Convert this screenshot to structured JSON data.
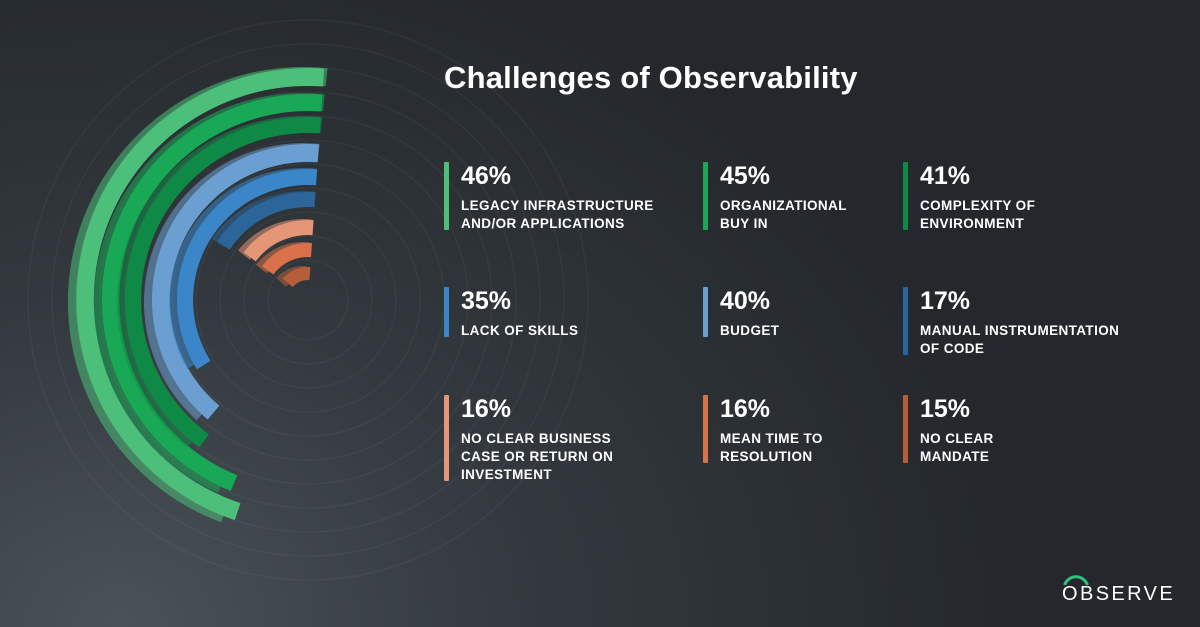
{
  "title": "Challenges of Observability",
  "logo_text": "OBSERVE",
  "colors": {
    "background": "#2b3034",
    "logo_arc": "#2ec27e"
  },
  "chart_data": {
    "type": "radial-bar",
    "title": "Challenges of Observability",
    "series": [
      {
        "value": 46,
        "pct": "46%",
        "label": "LEGACY INFRASTRUCTURE\nAND/OR APPLICATIONS",
        "color": "#4cbf7a"
      },
      {
        "value": 45,
        "pct": "45%",
        "label": "ORGANIZATIONAL\nBUY IN",
        "color": "#19a856"
      },
      {
        "value": 41,
        "pct": "41%",
        "label": "COMPLEXITY OF\nENVIRONMENT",
        "color": "#0f8a46"
      },
      {
        "value": 35,
        "pct": "35%",
        "label": "LACK OF SKILLS",
        "color": "#3a86c8"
      },
      {
        "value": 40,
        "pct": "40%",
        "label": "BUDGET",
        "color": "#6b9fd1"
      },
      {
        "value": 17,
        "pct": "17%",
        "label": "MANUAL INSTRUMENTATION\nOF CODE",
        "color": "#2b6599"
      },
      {
        "value": 16,
        "pct": "16%",
        "label": "NO CLEAR BUSINESS\nCASE OR RETURN ON\nINVESTMENT",
        "color": "#e59677"
      },
      {
        "value": 16,
        "pct": "16%",
        "label": "MEAN TIME TO\nRESOLUTION",
        "color": "#d9714a"
      },
      {
        "value": 15,
        "pct": "15%",
        "label": "NO CLEAR\nMANDATE",
        "color": "#b65e3a"
      }
    ]
  }
}
